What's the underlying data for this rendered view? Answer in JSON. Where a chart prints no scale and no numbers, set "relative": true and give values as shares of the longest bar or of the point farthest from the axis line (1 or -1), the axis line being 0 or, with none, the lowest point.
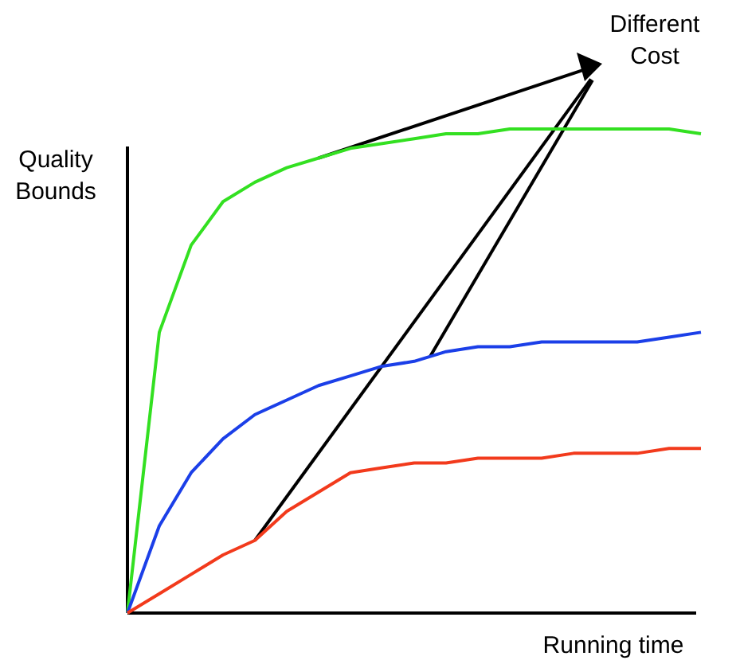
{
  "chart_data": {
    "type": "line",
    "relative": true,
    "xlabel": "Running time",
    "ylabel": "Quality Bounds",
    "annotations": [
      "Different Cost"
    ],
    "categories": [
      null,
      null,
      null,
      null,
      null,
      null,
      null,
      null,
      null,
      null,
      null,
      null,
      null,
      null,
      null,
      null,
      null,
      null,
      null
    ],
    "marker": "none",
    "line_style": "solid",
    "series": [
      {
        "color": "#33e021",
        "values": [
          0,
          0.58,
          0.76,
          0.85,
          0.89,
          0.92,
          0.94,
          0.96,
          0.97,
          0.98,
          0.99,
          0.99,
          1,
          1,
          1,
          1,
          1,
          1,
          0.99
        ]
      },
      {
        "color": "#1b3fe8",
        "values": [
          0,
          0.18,
          0.29,
          0.36,
          0.41,
          0.44,
          0.47,
          0.49,
          0.51,
          0.52,
          0.54,
          0.55,
          0.55,
          0.56,
          0.56,
          0.56,
          0.56,
          0.57,
          0.58
        ]
      },
      {
        "color": "#f23a1c",
        "values": [
          0,
          0.04,
          0.08,
          0.12,
          0.15,
          0.21,
          0.25,
          0.29,
          0.3,
          0.31,
          0.31,
          0.32,
          0.32,
          0.32,
          0.33,
          0.33,
          0.33,
          0.34,
          0.34
        ]
      }
    ]
  }
}
